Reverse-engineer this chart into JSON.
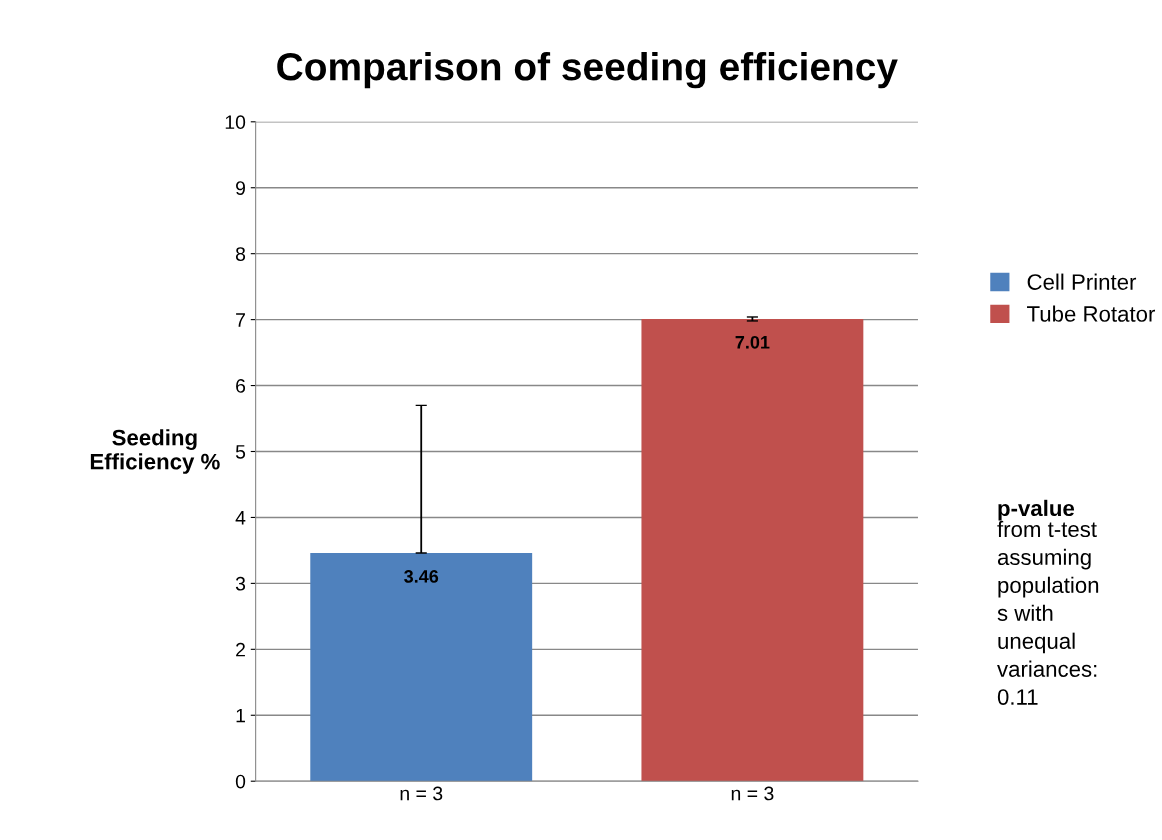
{
  "chart_data": {
    "type": "bar",
    "title": "Comparison of seeding efficiency",
    "ylabel": "Seeding\nEfficiency %",
    "categories": [
      "n = 3",
      "n = 3"
    ],
    "stacked": true,
    "series": [
      {
        "name": "Cell Printer",
        "color": "#4f81bd",
        "values": [
          3.46,
          null
        ],
        "errors": [
          [
            3.46,
            5.7
          ],
          null
        ]
      },
      {
        "name": "Tube Rotator",
        "color": "#c0504d",
        "values": [
          null,
          7.01
        ],
        "errors": [
          null,
          0.03
        ]
      }
    ],
    "data_labels": true,
    "ylim": [
      0,
      10
    ],
    "yticks": [
      0,
      1,
      2,
      3,
      4,
      5,
      6,
      7,
      8,
      9,
      10
    ],
    "grid": "y",
    "legend": "right",
    "annotations": [
      "p-value",
      "from t-test\nassuming\npopulation\ns with\nunequal\nvariances:\n0.11"
    ]
  }
}
